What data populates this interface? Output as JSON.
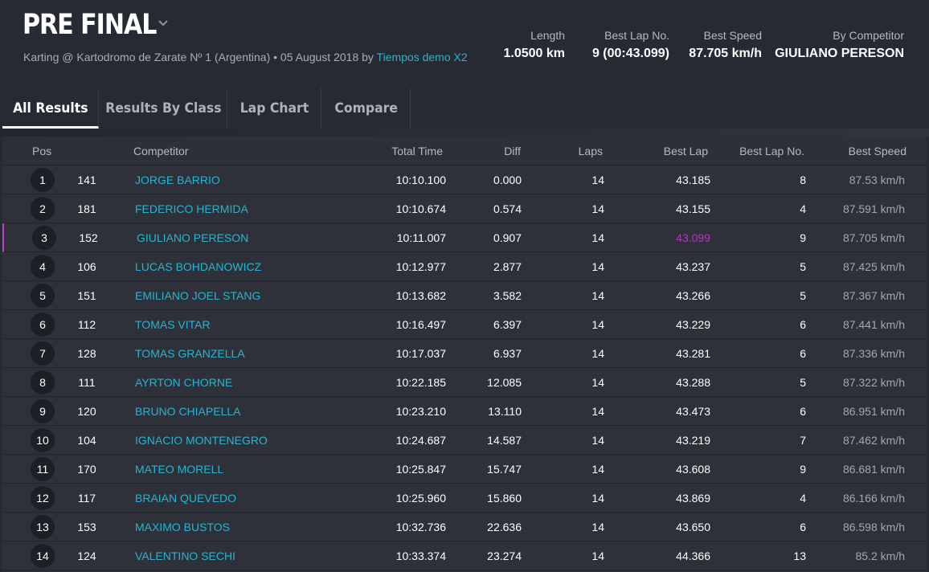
{
  "header": {
    "title": "PRE FINAL",
    "chevron_icon": "chevron-down-icon",
    "subtitle_text": "Karting @ Kartodromo de Zarate Nº 1 (Argentina) • 05 August 2018 by ",
    "subtitle_link": "Tiempos demo X2",
    "stats": {
      "length_label": "Length",
      "length_value": "1.0500 km",
      "best_lap_no_label": "Best Lap No.",
      "best_lap_no_value": "9 (00:43.099)",
      "best_speed_label": "Best Speed",
      "best_speed_value": "87.705 km/h",
      "by_competitor_label": "By Competitor",
      "by_competitor_value": "GIULIANO PERESON"
    }
  },
  "tabs": [
    {
      "label": "All Results",
      "active": true
    },
    {
      "label": "Results By Class",
      "active": false
    },
    {
      "label": "Lap Chart",
      "active": false
    },
    {
      "label": "Compare",
      "active": false
    }
  ],
  "table": {
    "columns": {
      "pos": "Pos",
      "competitor": "Competitor",
      "total_time": "Total Time",
      "diff": "Diff",
      "laps": "Laps",
      "best_lap": "Best Lap",
      "best_lap_no": "Best Lap No.",
      "best_speed": "Best Speed"
    },
    "rows": [
      {
        "pos": "1",
        "num": "141",
        "name": "JORGE BARRIO",
        "total": "10:10.100",
        "diff": "0.000",
        "laps": "14",
        "best": "43.185",
        "bln": "8",
        "speed": "87.53 km/h"
      },
      {
        "pos": "2",
        "num": "181",
        "name": "FEDERICO HERMIDA",
        "total": "10:10.674",
        "diff": "0.574",
        "laps": "14",
        "best": "43.155",
        "bln": "4",
        "speed": "87.591 km/h"
      },
      {
        "pos": "3",
        "num": "152",
        "name": "GIULIANO PERESON",
        "total": "10:11.007",
        "diff": "0.907",
        "laps": "14",
        "best": "43.099",
        "bln": "9",
        "speed": "87.705 km/h",
        "fastest": true
      },
      {
        "pos": "4",
        "num": "106",
        "name": "LUCAS BOHDANOWICZ",
        "total": "10:12.977",
        "diff": "2.877",
        "laps": "14",
        "best": "43.237",
        "bln": "5",
        "speed": "87.425 km/h"
      },
      {
        "pos": "5",
        "num": "151",
        "name": "EMILIANO JOEL STANG",
        "total": "10:13.682",
        "diff": "3.582",
        "laps": "14",
        "best": "43.266",
        "bln": "5",
        "speed": "87.367 km/h"
      },
      {
        "pos": "6",
        "num": "112",
        "name": "TOMAS VITAR",
        "total": "10:16.497",
        "diff": "6.397",
        "laps": "14",
        "best": "43.229",
        "bln": "6",
        "speed": "87.441 km/h"
      },
      {
        "pos": "7",
        "num": "128",
        "name": "TOMAS GRANZELLA",
        "total": "10:17.037",
        "diff": "6.937",
        "laps": "14",
        "best": "43.281",
        "bln": "6",
        "speed": "87.336 km/h"
      },
      {
        "pos": "8",
        "num": "111",
        "name": "AYRTON CHORNE",
        "total": "10:22.185",
        "diff": "12.085",
        "laps": "14",
        "best": "43.288",
        "bln": "5",
        "speed": "87.322 km/h"
      },
      {
        "pos": "9",
        "num": "120",
        "name": "BRUNO CHIAPELLA",
        "total": "10:23.210",
        "diff": "13.110",
        "laps": "14",
        "best": "43.473",
        "bln": "6",
        "speed": "86.951 km/h"
      },
      {
        "pos": "10",
        "num": "104",
        "name": "IGNACIO MONTENEGRO",
        "total": "10:24.687",
        "diff": "14.587",
        "laps": "14",
        "best": "43.219",
        "bln": "7",
        "speed": "87.462 km/h"
      },
      {
        "pos": "11",
        "num": "170",
        "name": "MATEO MORELL",
        "total": "10:25.847",
        "diff": "15.747",
        "laps": "14",
        "best": "43.608",
        "bln": "9",
        "speed": "86.681 km/h"
      },
      {
        "pos": "12",
        "num": "117",
        "name": "BRAIAN QUEVEDO",
        "total": "10:25.960",
        "diff": "15.860",
        "laps": "14",
        "best": "43.869",
        "bln": "4",
        "speed": "86.166 km/h"
      },
      {
        "pos": "13",
        "num": "153",
        "name": "MAXIMO BUSTOS",
        "total": "10:32.736",
        "diff": "22.636",
        "laps": "14",
        "best": "43.650",
        "bln": "6",
        "speed": "86.598 km/h"
      },
      {
        "pos": "14",
        "num": "124",
        "name": "VALENTINO SECHI",
        "total": "10:33.374",
        "diff": "23.274",
        "laps": "14",
        "best": "44.366",
        "bln": "13",
        "speed": "85.2 km/h"
      }
    ]
  },
  "colors": {
    "accent_link": "#26b5d1",
    "fastest_lap": "#b03bb8",
    "background": "#262a33"
  }
}
